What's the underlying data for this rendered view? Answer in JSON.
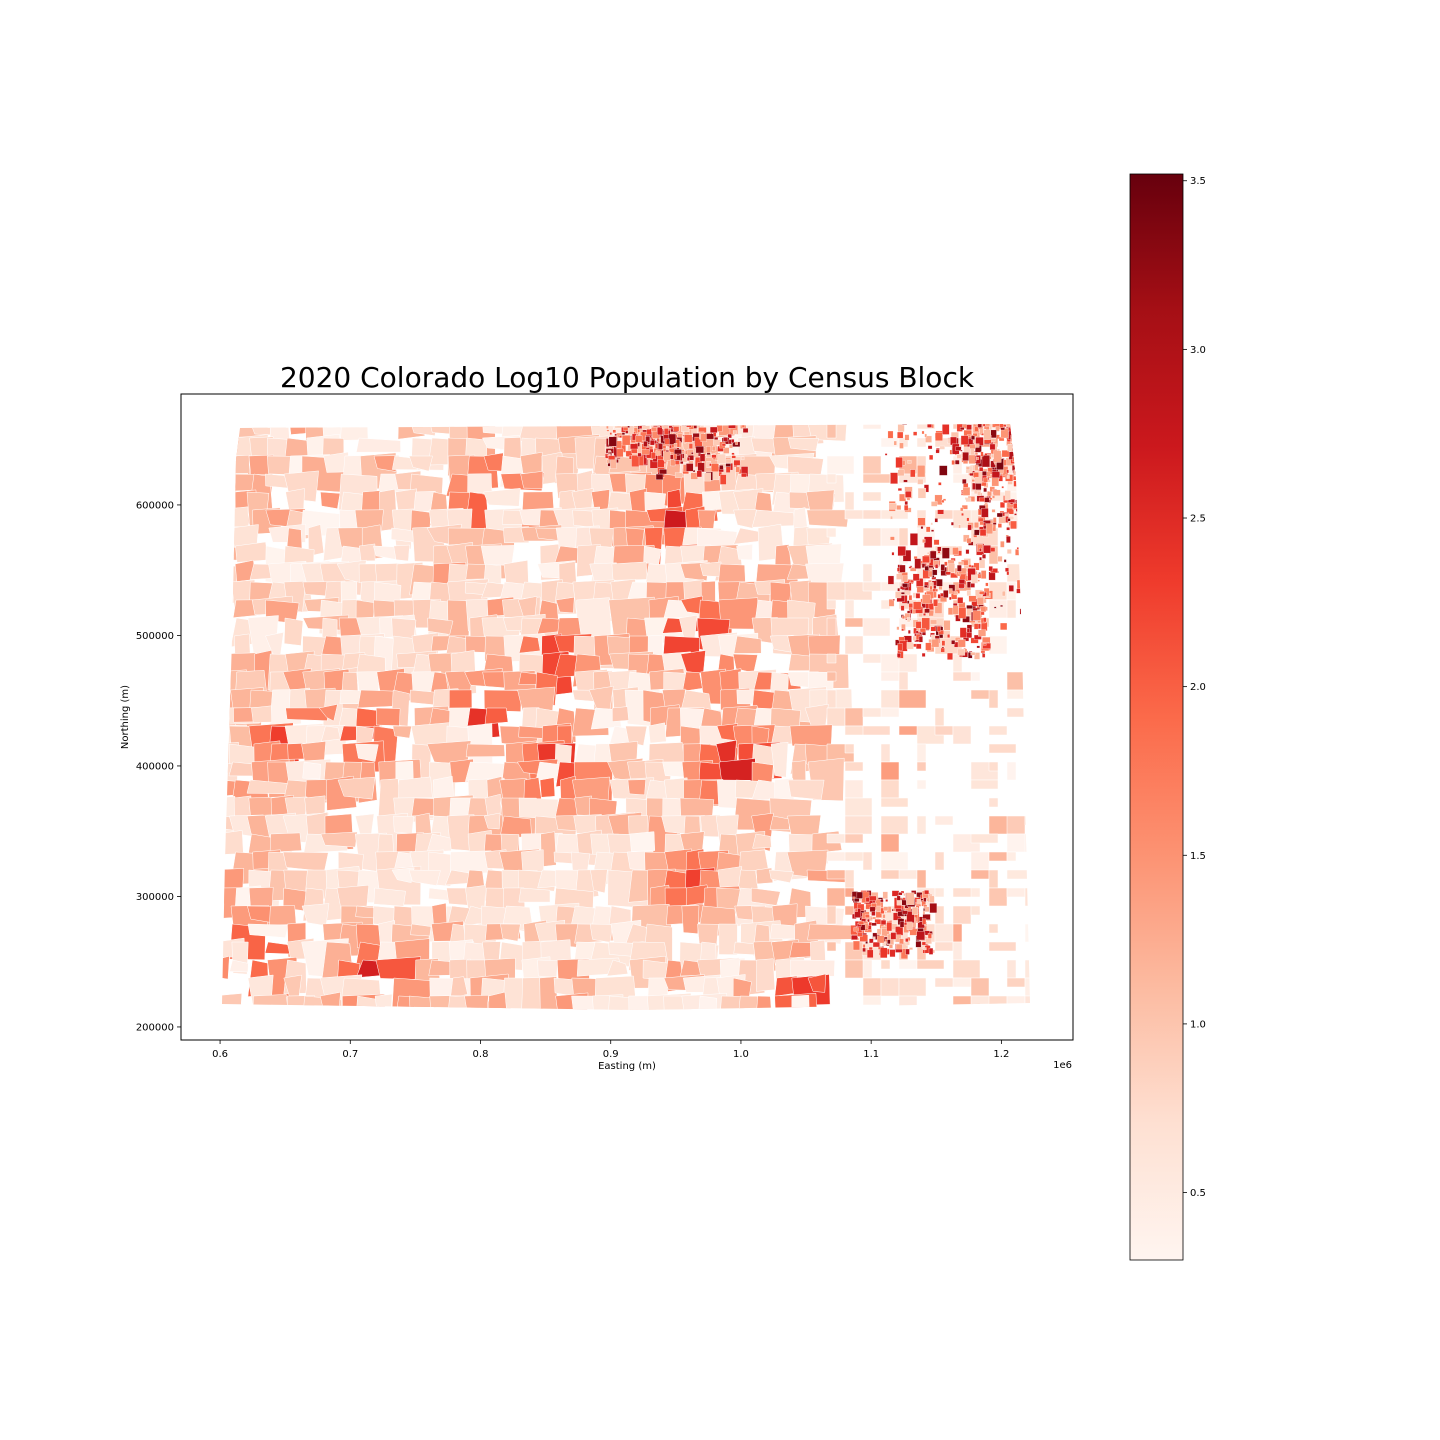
{
  "chart_data": {
    "type": "heatmap",
    "title": "2020 Colorado Log10 Population by Census Block",
    "xlabel": "Easting (m)",
    "ylabel": "Northing (m)",
    "x_offset_label": "1e6",
    "xlim": [
      0.57,
      1.255
    ],
    "ylim": [
      190000,
      685000
    ],
    "x_ticks": [
      0.6,
      0.7,
      0.8,
      0.9,
      1.0,
      1.1,
      1.2
    ],
    "x_tick_labels": [
      "0.6",
      "0.7",
      "0.8",
      "0.9",
      "1.0",
      "1.1",
      "1.2"
    ],
    "y_ticks": [
      200000,
      300000,
      400000,
      500000,
      600000
    ],
    "y_tick_labels": [
      "200000",
      "300000",
      "400000",
      "500000",
      "600000"
    ],
    "grid": false,
    "colormap": "Reds",
    "colorbar": {
      "range": [
        0.3,
        3.52
      ],
      "ticks": [
        0.5,
        1.0,
        1.5,
        2.0,
        2.5,
        3.0,
        3.5
      ],
      "tick_labels": [
        "0.5",
        "1.0",
        "1.5",
        "2.0",
        "2.5",
        "3.0",
        "3.5"
      ],
      "colors": [
        "#fff5f0",
        "#fee0d2",
        "#fcbba1",
        "#fc9272",
        "#fb6a4a",
        "#ef3b2c",
        "#cb181d",
        "#a50f15",
        "#67000d"
      ]
    },
    "hotspots": [
      {
        "x": 0.955,
        "y": 505000,
        "value": 2.9
      },
      {
        "x": 0.94,
        "y": 600000,
        "value": 2.6
      },
      {
        "x": 0.985,
        "y": 410000,
        "value": 2.7
      },
      {
        "x": 0.85,
        "y": 410000,
        "value": 2.6
      },
      {
        "x": 0.62,
        "y": 270000,
        "value": 2.5
      },
      {
        "x": 0.71,
        "y": 250000,
        "value": 2.5
      },
      {
        "x": 0.79,
        "y": 450000,
        "value": 2.4
      },
      {
        "x": 0.7,
        "y": 430000,
        "value": 2.3
      },
      {
        "x": 0.8,
        "y": 615000,
        "value": 2.4
      },
      {
        "x": 0.95,
        "y": 320000,
        "value": 2.2
      },
      {
        "x": 1.04,
        "y": 232000,
        "value": 2.6
      },
      {
        "x": 0.85,
        "y": 490000,
        "value": 2.5
      },
      {
        "x": 1.0,
        "y": 470000,
        "value": 2.1
      },
      {
        "x": 0.64,
        "y": 430000,
        "value": 2.2
      }
    ]
  }
}
